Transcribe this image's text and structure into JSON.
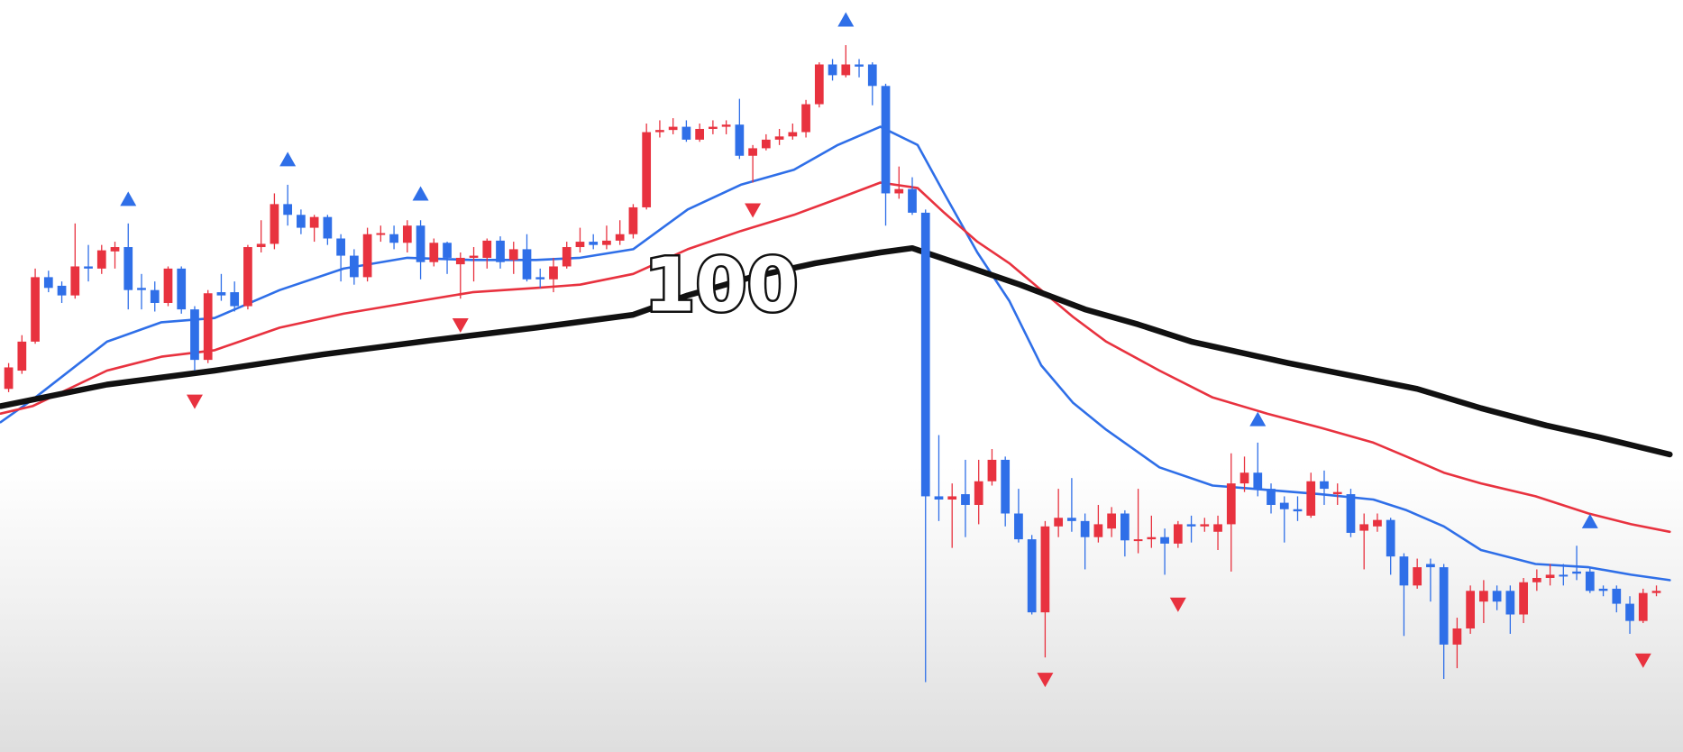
{
  "chart_data": {
    "type": "candlestick",
    "up_color": "#e8323f",
    "down_color": "#2f6fe8",
    "xlim": [
      -0.65,
      126
    ],
    "ylim": [
      0,
      700
    ],
    "open": [
      338,
      355,
      382,
      442,
      434,
      425,
      452,
      450,
      466,
      470,
      432,
      430,
      418,
      450,
      412,
      365,
      428,
      428,
      415,
      470,
      473,
      510,
      500,
      488,
      498,
      478,
      462,
      442,
      482,
      482,
      474,
      490,
      456,
      474,
      454,
      460,
      460,
      476,
      458,
      468,
      442,
      440,
      452,
      470,
      475,
      472,
      476,
      482,
      507,
      577,
      579,
      582,
      570,
      580,
      582,
      584,
      555,
      562,
      570,
      573,
      577,
      603,
      640,
      630,
      640,
      640,
      620,
      520,
      524,
      502,
      238,
      235,
      240,
      230,
      252,
      272,
      222,
      198,
      130,
      210,
      218,
      215,
      200,
      208,
      222,
      197,
      198,
      200,
      194,
      212,
      210,
      205,
      212,
      250,
      260,
      245,
      232,
      226,
      220,
      252,
      240,
      240,
      206,
      210,
      216,
      182,
      155,
      175,
      172,
      100,
      115,
      140,
      150,
      150,
      128,
      158,
      162,
      165,
      168,
      168,
      152,
      152,
      138,
      122,
      148
    ],
    "high": [
      362,
      388,
      450,
      448,
      438,
      492,
      472,
      472,
      475,
      492,
      445,
      438,
      452,
      452,
      415,
      430,
      445,
      438,
      472,
      495,
      520,
      528,
      505,
      500,
      500,
      482,
      468,
      488,
      490,
      490,
      495,
      495,
      478,
      475,
      465,
      470,
      478,
      480,
      475,
      482,
      450,
      460,
      475,
      488,
      482,
      490,
      495,
      510,
      585,
      588,
      590,
      588,
      585,
      588,
      588,
      608,
      565,
      575,
      580,
      585,
      607,
      642,
      645,
      658,
      645,
      642,
      622,
      545,
      535,
      505,
      295,
      250,
      272,
      272,
      282,
      275,
      245,
      202,
      215,
      245,
      255,
      222,
      230,
      228,
      225,
      245,
      220,
      208,
      215,
      220,
      218,
      220,
      278,
      275,
      288,
      250,
      238,
      238,
      260,
      262,
      250,
      245,
      222,
      222,
      218,
      185,
      180,
      180,
      175,
      125,
      155,
      160,
      155,
      155,
      162,
      170,
      175,
      175,
      192,
      172,
      155,
      155,
      145,
      152,
      155
    ],
    "low": [
      335,
      352,
      380,
      428,
      418,
      422,
      438,
      445,
      450,
      412,
      412,
      410,
      415,
      408,
      355,
      362,
      420,
      410,
      412,
      465,
      468,
      490,
      482,
      475,
      472,
      438,
      435,
      438,
      475,
      468,
      465,
      440,
      452,
      445,
      422,
      438,
      450,
      450,
      445,
      438,
      432,
      428,
      450,
      465,
      468,
      468,
      472,
      478,
      505,
      572,
      575,
      568,
      568,
      575,
      575,
      552,
      530,
      560,
      565,
      570,
      572,
      600,
      625,
      628,
      628,
      602,
      490,
      515,
      500,
      65,
      215,
      190,
      200,
      212,
      248,
      210,
      195,
      128,
      88,
      200,
      205,
      170,
      195,
      200,
      182,
      185,
      190,
      165,
      190,
      195,
      205,
      188,
      168,
      242,
      238,
      222,
      195,
      215,
      218,
      230,
      230,
      200,
      170,
      205,
      165,
      108,
      152,
      140,
      68,
      78,
      110,
      120,
      132,
      110,
      120,
      150,
      155,
      155,
      160,
      148,
      145,
      130,
      110,
      120,
      145
    ],
    "close": [
      358,
      382,
      442,
      432,
      425,
      452,
      450,
      467,
      470,
      430,
      430,
      418,
      450,
      412,
      365,
      427,
      425,
      415,
      470,
      473,
      510,
      500,
      488,
      498,
      478,
      462,
      442,
      482,
      483,
      474,
      490,
      456,
      474,
      460,
      460,
      462,
      476,
      456,
      468,
      440,
      440,
      452,
      470,
      475,
      472,
      476,
      482,
      507,
      577,
      579,
      582,
      570,
      580,
      582,
      584,
      555,
      562,
      570,
      573,
      577,
      603,
      640,
      630,
      640,
      638,
      620,
      520,
      524,
      502,
      238,
      235,
      238,
      230,
      252,
      272,
      222,
      198,
      130,
      210,
      218,
      215,
      200,
      212,
      222,
      197,
      198,
      200,
      194,
      212,
      210,
      212,
      212,
      250,
      260,
      245,
      230,
      226,
      224,
      252,
      245,
      242,
      204,
      212,
      216,
      182,
      155,
      172,
      172,
      100,
      115,
      150,
      150,
      140,
      128,
      158,
      162,
      165,
      164,
      166,
      150,
      150,
      138,
      122,
      148,
      150
    ],
    "series": [
      {
        "color": "#2f6fe8",
        "width": 2.6,
        "x": [
          -0.6,
          1.8,
          7.4,
          11.5,
          15.5,
          20.4,
          25.2,
          30.0,
          34.9,
          39.7,
          43.0,
          47.0,
          51.1,
          55.1,
          59.1,
          62.4,
          65.6,
          68.4,
          70.4,
          72.9,
          75.3,
          77.7,
          80.1,
          82.6,
          86.6,
          90.6,
          94.7,
          98.7,
          102.7,
          105.2,
          108.0,
          110.8,
          114.9,
          118.9,
          122.1,
          125.0
        ],
        "values": [
          307,
          328,
          382,
          400,
          404,
          430,
          450,
          460,
          458,
          458,
          460,
          468,
          505,
          528,
          542,
          565,
          582,
          565,
          520,
          465,
          420,
          360,
          325,
          300,
          265,
          248,
          244,
          240,
          235,
          225,
          210,
          188,
          175,
          172,
          165,
          160
        ]
      },
      {
        "color": "#e8323f",
        "width": 2.6,
        "x": [
          -0.6,
          1.8,
          7.4,
          11.5,
          15.5,
          20.4,
          25.2,
          30.0,
          34.9,
          39.7,
          43.0,
          47.0,
          51.1,
          55.1,
          59.1,
          62.4,
          65.6,
          68.4,
          70.4,
          72.9,
          75.3,
          77.7,
          80.1,
          82.6,
          86.6,
          90.6,
          94.7,
          98.7,
          102.7,
          105.2,
          108.0,
          110.8,
          114.9,
          118.9,
          122.1,
          125.0
        ],
        "values": [
          315,
          322,
          355,
          368,
          374,
          395,
          408,
          418,
          428,
          432,
          435,
          445,
          468,
          485,
          500,
          515,
          530,
          525,
          502,
          475,
          455,
          430,
          405,
          382,
          355,
          330,
          315,
          302,
          288,
          275,
          260,
          250,
          238,
          222,
          212,
          205
        ]
      },
      {
        "color": "#111111",
        "width": 6.5,
        "x": [
          -0.6,
          7.4,
          15.5,
          23.6,
          31.7,
          39.7,
          47.0,
          51.1,
          55.9,
          60.7,
          65.6,
          68.0,
          72.1,
          76.1,
          81.0,
          85.0,
          89.0,
          96.3,
          106.0,
          110.8,
          115.7,
          119.7,
          125.0
        ],
        "values": [
          322,
          342,
          355,
          370,
          383,
          395,
          407,
          425,
          442,
          455,
          465,
          469,
          452,
          435,
          412,
          398,
          382,
          362,
          338,
          320,
          304,
          293,
          277
        ]
      }
    ],
    "buy_signals": {
      "color": "#2f6fe8",
      "x": [
        9,
        21,
        31,
        63,
        94,
        119
      ],
      "values": [
        515,
        552,
        520,
        682,
        310,
        215
      ]
    },
    "sell_signals": {
      "color": "#e8323f",
      "x": [
        14,
        34,
        56,
        78,
        88,
        123
      ],
      "values": [
        326,
        397,
        504,
        67,
        137,
        85
      ]
    },
    "annotation": "100"
  }
}
